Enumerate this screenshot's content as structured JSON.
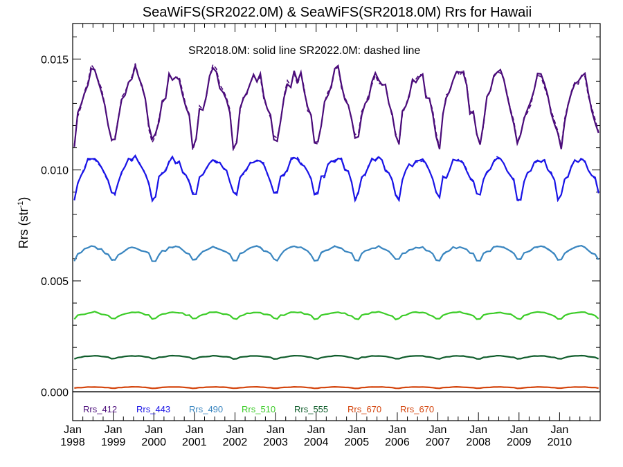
{
  "chart_data": {
    "type": "line",
    "title": "SeaWiFS(SR2022.0M) & SeaWiFS(SR2018.0M)  Rrs for Hawaii",
    "ylabel_main": "Rrs (str",
    "ylabel_sup": "-1",
    "ylabel_close": ")",
    "annotation": "SR2018.0M: solid line   SR2022.0M: dashed line",
    "ylim": [
      -0.0013,
      0.0166
    ],
    "xlim": [
      1998.0,
      2011.0
    ],
    "yticks": [
      {
        "value": 0.0,
        "label": "0.000"
      },
      {
        "value": 0.005,
        "label": "0.005"
      },
      {
        "value": 0.01,
        "label": "0.010"
      },
      {
        "value": 0.015,
        "label": "0.015"
      }
    ],
    "xticks": [
      {
        "value": 1998,
        "month": "Jan",
        "year": "1998"
      },
      {
        "value": 1999,
        "month": "Jan",
        "year": "1999"
      },
      {
        "value": 2000,
        "month": "Jan",
        "year": "2000"
      },
      {
        "value": 2001,
        "month": "Jan",
        "year": "2001"
      },
      {
        "value": 2002,
        "month": "Jan",
        "year": "2002"
      },
      {
        "value": 2003,
        "month": "Jan",
        "year": "2003"
      },
      {
        "value": 2004,
        "month": "Jan",
        "year": "2004"
      },
      {
        "value": 2005,
        "month": "Jan",
        "year": "2005"
      },
      {
        "value": 2006,
        "month": "Jan",
        "year": "2006"
      },
      {
        "value": 2007,
        "month": "Jan",
        "year": "2007"
      },
      {
        "value": 2008,
        "month": "Jan",
        "year": "2008"
      },
      {
        "value": 2009,
        "month": "Jan",
        "year": "2009"
      },
      {
        "value": 2010,
        "month": "Jan",
        "year": "2010"
      }
    ],
    "legend": [
      {
        "label": "Rrs_412",
        "color": "#4b0c7a"
      },
      {
        "label": "Rrs_443",
        "color": "#1a14e6"
      },
      {
        "label": "Rrs_490",
        "color": "#3a86c0"
      },
      {
        "label": "Rrs_510",
        "color": "#3ccc28"
      },
      {
        "label": "Rrs_555",
        "color": "#0e5c2a"
      },
      {
        "label": "Rrs_670",
        "color": "#d4440c"
      },
      {
        "label": "Rrs_670",
        "color": "#d4440c"
      }
    ],
    "series": [
      {
        "name": "Rrs_412",
        "color": "#4b0c7a",
        "mean": 0.0132,
        "amp": 0.00115,
        "dip": 0.0008
      },
      {
        "name": "Rrs_443",
        "color": "#1a14e6",
        "mean": 0.00995,
        "amp": 0.00055,
        "dip": 0.0006
      },
      {
        "name": "Rrs_490",
        "color": "#3a86c0",
        "mean": 0.00635,
        "amp": 0.00018,
        "dip": 0.00025
      },
      {
        "name": "Rrs_510",
        "color": "#3ccc28",
        "mean": 0.0035,
        "amp": 9e-05,
        "dip": 0.00012
      },
      {
        "name": "Rrs_555",
        "color": "#0e5c2a",
        "mean": 0.00158,
        "amp": 4e-05,
        "dip": 5e-05
      },
      {
        "name": "Rrs_670",
        "color": "#d4440c",
        "mean": 0.0002,
        "amp": 2e-05,
        "dip": 2e-05
      }
    ]
  }
}
